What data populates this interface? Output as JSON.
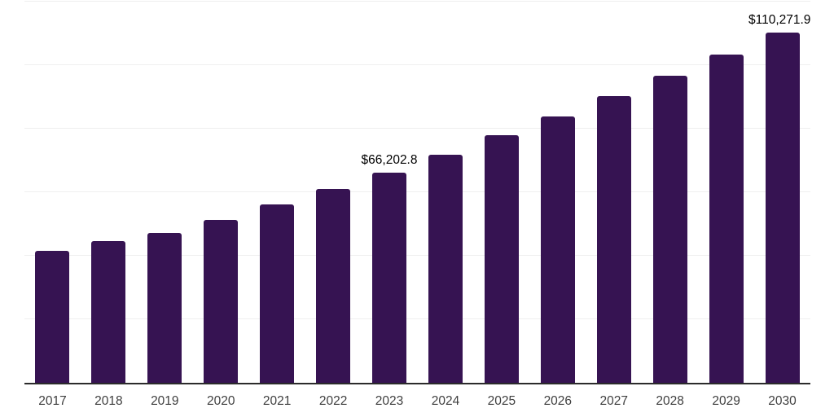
{
  "chart_data": {
    "type": "bar",
    "title": "",
    "xlabel": "",
    "ylabel": "",
    "categories": [
      "2017",
      "2018",
      "2019",
      "2020",
      "2021",
      "2022",
      "2023",
      "2024",
      "2025",
      "2026",
      "2027",
      "2028",
      "2029",
      "2030"
    ],
    "values": [
      41500,
      44500,
      47150,
      51250,
      56100,
      61000,
      66202.8,
      71900,
      77950,
      83900,
      90250,
      96600,
      103400,
      110271.9
    ],
    "annotations": [
      {
        "category": "2023",
        "label": "$66,202.8"
      },
      {
        "category": "2030",
        "label": "$110,271.9"
      }
    ],
    "ylim": [
      0,
      120000
    ],
    "gridline_step": 20000,
    "grid": "horizontal-only",
    "legend": "none",
    "y_axis_tick_labels_visible": false,
    "colors": {
      "bar": "#361352",
      "gridline": "#efefef",
      "axis_line": "#2b2b2b",
      "x_tick_label": "#3f3f3f",
      "annotation_text": "#000000",
      "background": "#ffffff"
    }
  }
}
